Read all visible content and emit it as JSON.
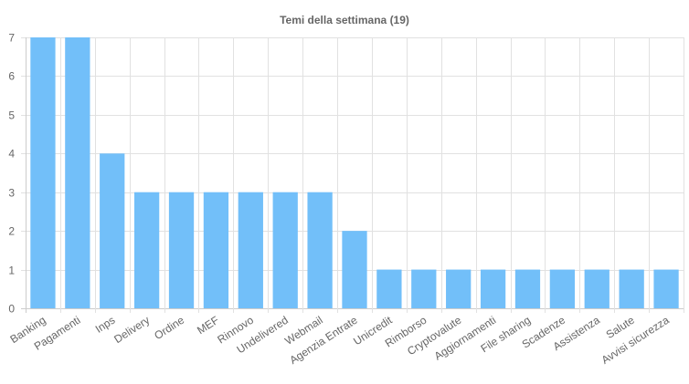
{
  "chart_data": {
    "type": "bar",
    "title": "Temi della settimana (19)",
    "xlabel": "",
    "ylabel": "",
    "ylim": [
      0,
      7
    ],
    "yticks": [
      0,
      1,
      2,
      3,
      4,
      5,
      6,
      7
    ],
    "grid": true,
    "categories": [
      "Banking",
      "Pagamenti",
      "Inps",
      "Delivery",
      "Ordine",
      "MEF",
      "Rinnovo",
      "Undelivered",
      "Webmail",
      "Agenzia Entrate",
      "Unicredit",
      "Rimborso",
      "Cryptovalute",
      "Aggiornamenti",
      "File sharing",
      "Scadenze",
      "Assistenza",
      "Salute",
      "Avvisi sicurezza"
    ],
    "values": [
      7,
      7,
      4,
      3,
      3,
      3,
      3,
      3,
      3,
      2,
      1,
      1,
      1,
      1,
      1,
      1,
      1,
      1,
      1
    ],
    "bar_color": "#72bff9"
  }
}
